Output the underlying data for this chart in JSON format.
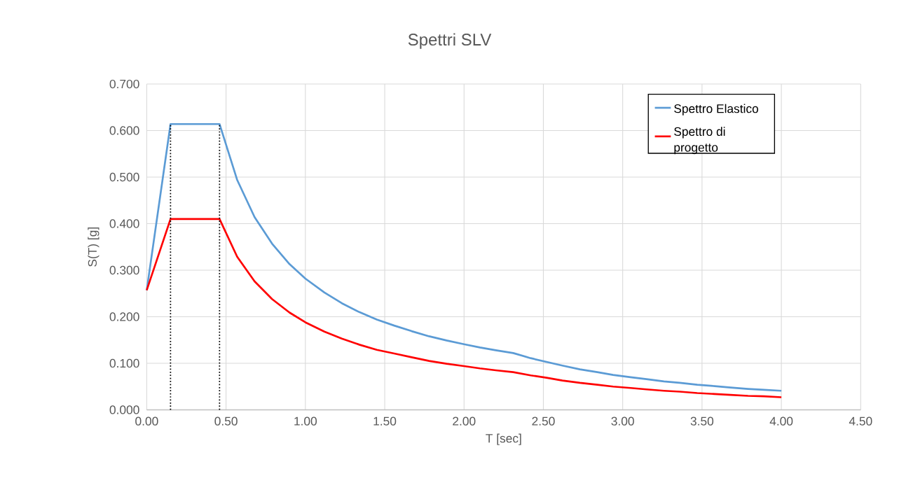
{
  "chart_data": {
    "type": "line",
    "title": "Spettri SLV",
    "xlabel": "T [sec]",
    "ylabel": "S(T) [g]",
    "xlim": [
      0,
      4.5
    ],
    "ylim": [
      0,
      0.7
    ],
    "xticks": [
      {
        "value": 0,
        "label": "0.00"
      },
      {
        "value": 0.5,
        "label": "0.50"
      },
      {
        "value": 1,
        "label": "1.00"
      },
      {
        "value": 1.5,
        "label": "1.50"
      },
      {
        "value": 2,
        "label": "2.00"
      },
      {
        "value": 2.5,
        "label": "2.50"
      },
      {
        "value": 3,
        "label": "3.00"
      },
      {
        "value": 3.5,
        "label": "3.50"
      },
      {
        "value": 4,
        "label": "4.00"
      },
      {
        "value": 4.5,
        "label": "4.50"
      }
    ],
    "yticks": [
      {
        "value": 0,
        "label": "0.000"
      },
      {
        "value": 0.1,
        "label": "0.100"
      },
      {
        "value": 0.2,
        "label": "0.200"
      },
      {
        "value": 0.3,
        "label": "0.300"
      },
      {
        "value": 0.4,
        "label": "0.400"
      },
      {
        "value": 0.5,
        "label": "0.500"
      },
      {
        "value": 0.6,
        "label": "0.600"
      },
      {
        "value": 0.7,
        "label": "0.700"
      }
    ],
    "grid": true,
    "legend": "top right",
    "marker": "none",
    "series": [
      {
        "name": "Spettro Elastico",
        "color": "#5b9bd5",
        "line_style": "solid",
        "x": [
          0,
          0.15,
          0.459,
          0.57,
          0.68,
          0.79,
          0.9,
          1.0,
          1.12,
          1.23,
          1.34,
          1.45,
          1.56,
          1.67,
          1.78,
          1.89,
          2.0,
          2.1,
          2.2,
          2.31,
          2.42,
          2.52,
          2.62,
          2.73,
          2.84,
          2.94,
          3.05,
          3.15,
          3.26,
          3.36,
          3.47,
          3.58,
          3.68,
          3.79,
          3.89,
          4.0
        ],
        "values": [
          0.257,
          0.614,
          0.614,
          0.494,
          0.414,
          0.357,
          0.313,
          0.282,
          0.252,
          0.229,
          0.21,
          0.194,
          0.181,
          0.169,
          0.158,
          0.149,
          0.141,
          0.134,
          0.128,
          0.122,
          0.111,
          0.103,
          0.095,
          0.087,
          0.081,
          0.075,
          0.07,
          0.066,
          0.061,
          0.058,
          0.054,
          0.051,
          0.048,
          0.045,
          0.043,
          0.041
        ]
      },
      {
        "name": "Spettro di progetto",
        "color": "#ff0000",
        "line_style": "solid",
        "x": [
          0,
          0.15,
          0.459,
          0.57,
          0.68,
          0.79,
          0.9,
          1.0,
          1.12,
          1.23,
          1.34,
          1.45,
          1.56,
          1.67,
          1.78,
          1.89,
          2.0,
          2.1,
          2.2,
          2.31,
          2.42,
          2.52,
          2.62,
          2.73,
          2.84,
          2.94,
          3.05,
          3.15,
          3.26,
          3.36,
          3.47,
          3.58,
          3.68,
          3.79,
          3.89,
          4.0
        ],
        "values": [
          0.257,
          0.41,
          0.41,
          0.329,
          0.276,
          0.238,
          0.209,
          0.188,
          0.168,
          0.153,
          0.14,
          0.129,
          0.121,
          0.113,
          0.105,
          0.099,
          0.094,
          0.089,
          0.085,
          0.081,
          0.074,
          0.069,
          0.063,
          0.058,
          0.054,
          0.05,
          0.047,
          0.044,
          0.041,
          0.039,
          0.036,
          0.034,
          0.032,
          0.03,
          0.029,
          0.027
        ]
      },
      {
        "color": "#000000",
        "line_style": "dotted",
        "x": [
          0.15,
          0.15
        ],
        "values": [
          0,
          0.614
        ]
      },
      {
        "color": "#000000",
        "line_style": "dotted",
        "x": [
          0.459,
          0.459
        ],
        "values": [
          0,
          0.614
        ]
      }
    ]
  }
}
